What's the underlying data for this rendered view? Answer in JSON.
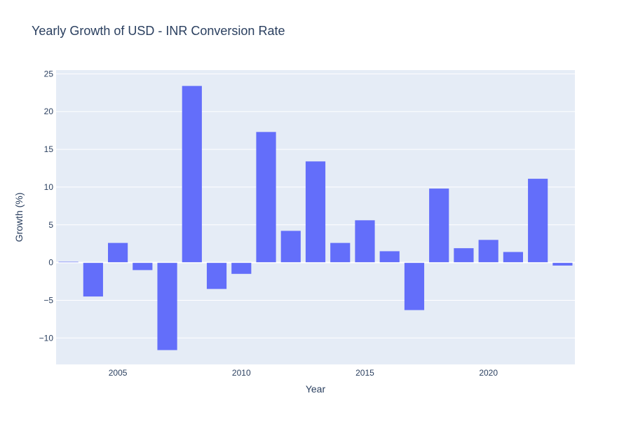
{
  "chart_data": {
    "type": "bar",
    "title": "Yearly Growth of USD - INR Conversion Rate",
    "xlabel": "Year",
    "ylabel": "Growth (%)",
    "x": [
      2003,
      2004,
      2005,
      2006,
      2007,
      2008,
      2009,
      2010,
      2011,
      2012,
      2013,
      2014,
      2015,
      2016,
      2017,
      2018,
      2019,
      2020,
      2021,
      2022,
      2023
    ],
    "values": [
      0.1,
      -4.5,
      2.6,
      -1.0,
      -11.6,
      23.4,
      -3.5,
      -1.5,
      17.3,
      4.2,
      13.4,
      2.6,
      5.6,
      1.5,
      -6.3,
      9.8,
      1.9,
      3.0,
      1.4,
      11.1,
      -0.4
    ],
    "xlim": [
      2002.5,
      2023.5
    ],
    "ylim": [
      -13.5,
      25.5
    ],
    "x_ticks": [
      2005,
      2010,
      2015,
      2020
    ],
    "y_ticks": [
      -10,
      -5,
      0,
      5,
      10,
      15,
      20,
      25
    ],
    "x_tick_labels": [
      "2005",
      "2010",
      "2015",
      "2020"
    ],
    "y_tick_labels": [
      "−10",
      "−5",
      "0",
      "5",
      "10",
      "15",
      "20",
      "25"
    ],
    "grid": true,
    "bar_color": "#636efa",
    "plot_background": "#e5ecf6",
    "grid_color": "#ffffff",
    "text_color": "#2a3f5f"
  }
}
